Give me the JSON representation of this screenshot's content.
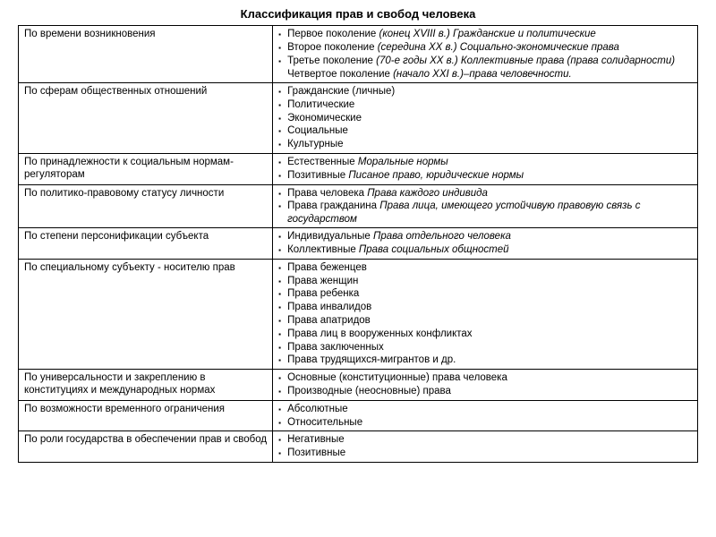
{
  "title": "Классификация прав и свобод человека",
  "colors": {
    "text": "#000000",
    "background": "#ffffff",
    "border": "#000000"
  },
  "typography": {
    "base_fontsize_pt": 9,
    "title_fontsize_pt": 10,
    "font_family": "Arial"
  },
  "table": {
    "column_widths_pct": [
      37,
      63
    ],
    "rows": [
      {
        "criterion": "По времени возникновения",
        "items": [
          {
            "bullet": true,
            "segments": [
              {
                "t": "Первое поколение "
              },
              {
                "t": "(конец XVIII в.) Гражданские и политические",
                "i": true
              }
            ]
          },
          {
            "bullet": true,
            "segments": [
              {
                "t": "Второе поколение "
              },
              {
                "t": "(середина XX в.) Социально-экономические права",
                "i": true
              }
            ]
          },
          {
            "bullet": true,
            "segments": [
              {
                "t": "Третье поколение "
              },
              {
                "t": "(70-е годы XX в.) Коллективные права (права солидарности)",
                "i": true
              }
            ]
          },
          {
            "bullet": false,
            "segments": [
              {
                "t": "Четвертое поколение "
              },
              {
                "t": "(начало XXI в.)–права человечности.",
                "i": true
              }
            ]
          }
        ]
      },
      {
        "criterion": "По сферам общественных отношений",
        "items": [
          {
            "bullet": true,
            "segments": [
              {
                "t": "Гражданские (личные)"
              }
            ]
          },
          {
            "bullet": true,
            "segments": [
              {
                "t": "Политические"
              }
            ]
          },
          {
            "bullet": true,
            "segments": [
              {
                "t": "Экономические"
              }
            ]
          },
          {
            "bullet": true,
            "segments": [
              {
                "t": "Социальные"
              }
            ]
          },
          {
            "bullet": true,
            "segments": [
              {
                "t": "Культурные"
              }
            ]
          }
        ]
      },
      {
        "criterion": "По принадлежности к социальным нормам-регуляторам",
        "items": [
          {
            "bullet": true,
            "segments": [
              {
                "t": "Естественные "
              },
              {
                "t": "Моральные нормы",
                "i": true
              }
            ]
          },
          {
            "bullet": true,
            "segments": [
              {
                "t": "Позитивные "
              },
              {
                "t": "Писаное право, юридические нормы",
                "i": true
              }
            ]
          }
        ]
      },
      {
        "criterion": "По политико-правовому статусу личности",
        "items": [
          {
            "bullet": true,
            "segments": [
              {
                "t": "Права человека "
              },
              {
                "t": "Права каждого индивида",
                "i": true
              }
            ]
          },
          {
            "bullet": true,
            "segments": [
              {
                "t": "Права гражданина "
              },
              {
                "t": "Права лица, имеющего устойчивую правовую связь с государством",
                "i": true
              }
            ]
          }
        ]
      },
      {
        "criterion": "По степени персонификации субъекта",
        "items": [
          {
            "bullet": true,
            "segments": [
              {
                "t": "Индивидуальные "
              },
              {
                "t": "Права отдельного человека",
                "i": true
              }
            ]
          },
          {
            "bullet": true,
            "segments": [
              {
                "t": "Коллективные "
              },
              {
                "t": "Права социальных общностей",
                "i": true
              }
            ]
          }
        ]
      },
      {
        "criterion": "По специальному субъекту - носителю прав",
        "items": [
          {
            "bullet": true,
            "segments": [
              {
                "t": "Права беженцев"
              }
            ]
          },
          {
            "bullet": true,
            "segments": [
              {
                "t": "Права женщин"
              }
            ]
          },
          {
            "bullet": true,
            "segments": [
              {
                "t": "Права ребенка"
              }
            ]
          },
          {
            "bullet": true,
            "segments": [
              {
                "t": "Права инвалидов"
              }
            ]
          },
          {
            "bullet": true,
            "segments": [
              {
                "t": "Права апатридов"
              }
            ]
          },
          {
            "bullet": true,
            "segments": [
              {
                "t": "Права лиц в вооруженных конфликтах"
              }
            ]
          },
          {
            "bullet": true,
            "segments": [
              {
                "t": "Права заключенных"
              }
            ]
          },
          {
            "bullet": true,
            "segments": [
              {
                "t": "Права трудящихся-мигрантов и др."
              }
            ]
          }
        ]
      },
      {
        "criterion": "По универсальности и закреплению в конституциях и международных нормах",
        "items": [
          {
            "bullet": true,
            "segments": [
              {
                "t": "Основные (конституционные) права человека"
              }
            ]
          },
          {
            "bullet": true,
            "segments": [
              {
                "t": "Производные (неосновные) права"
              }
            ]
          }
        ]
      },
      {
        "criterion": "По возможности временного ограничения",
        "items": [
          {
            "bullet": true,
            "segments": [
              {
                "t": "Абсолютные"
              }
            ]
          },
          {
            "bullet": true,
            "segments": [
              {
                "t": "Относительные"
              }
            ]
          }
        ]
      },
      {
        "criterion": "По роли государства в обеспечении прав и свобод",
        "items": [
          {
            "bullet": true,
            "segments": [
              {
                "t": "Негативные"
              }
            ]
          },
          {
            "bullet": true,
            "segments": [
              {
                "t": "Позитивные"
              }
            ]
          }
        ]
      }
    ]
  }
}
